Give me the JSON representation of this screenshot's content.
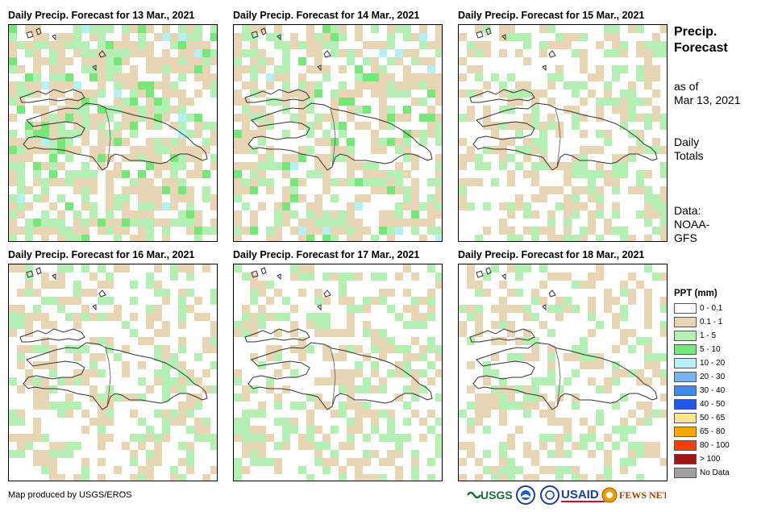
{
  "panels": [
    {
      "title": "Daily Precip. Forecast for 13 Mar., 2021",
      "day": 0
    },
    {
      "title": "Daily Precip. Forecast for 14 Mar., 2021",
      "day": 1
    },
    {
      "title": "Daily Precip. Forecast for 15 Mar., 2021",
      "day": 2
    },
    {
      "title": "Daily Precip. Forecast for 16 Mar., 2021",
      "day": 3
    },
    {
      "title": "Daily Precip. Forecast for 17 Mar., 2021",
      "day": 4
    },
    {
      "title": "Daily Precip. Forecast for 18 Mar., 2021",
      "day": 5
    }
  ],
  "sidebar": {
    "title_line1": "Precip.",
    "title_line2": "Forecast",
    "asof_line1": "as of",
    "asof_line2": "Mar 13, 2021",
    "totals_line1": "Daily",
    "totals_line2": "Totals",
    "data_line1": "Data:",
    "data_line2": "NOAA-",
    "data_line3": "GFS"
  },
  "legend": {
    "title": "PPT (mm)",
    "items": [
      {
        "label": "0 - 0.1",
        "color": "#ffffff"
      },
      {
        "label": "0.1 - 1",
        "color": "#e8d5b4"
      },
      {
        "label": "1 - 5",
        "color": "#b4f0b4"
      },
      {
        "label": "5 - 10",
        "color": "#78e678"
      },
      {
        "label": "10 - 20",
        "color": "#b4f0f5"
      },
      {
        "label": "20 - 30",
        "color": "#78b4f0"
      },
      {
        "label": "30 - 40",
        "color": "#3c8cf0"
      },
      {
        "label": "40 - 50",
        "color": "#1e5ae6"
      },
      {
        "label": "50 - 65",
        "color": "#ffe68c"
      },
      {
        "label": "65 - 80",
        "color": "#ffa500"
      },
      {
        "label": "80 - 100",
        "color": "#ff3c00"
      },
      {
        "label": "> 100",
        "color": "#a01414"
      },
      {
        "label": "No Data",
        "color": "#a0a0a0"
      }
    ]
  },
  "credit": "Map produced by USGS/EROS",
  "logos": {
    "usgs": "USGS",
    "usaid": "USAID",
    "fews": "FEWS NET"
  }
}
